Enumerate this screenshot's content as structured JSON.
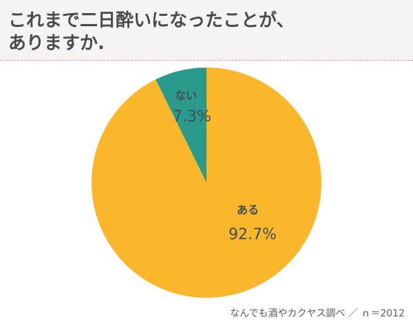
{
  "title": "これまで二日酔いになったことが、\nありますか.",
  "source": "なんでも酒やカクヤス調べ ／ ｎ＝2012",
  "chart_data": {
    "type": "pie",
    "title": "これまで二日酔いになったことが、ありますか.",
    "slices": [
      {
        "label": "ない",
        "value": 7.3,
        "value_label": "7.3%",
        "color": "#2a9a8c"
      },
      {
        "label": "ある",
        "value": 92.7,
        "value_label": "92.7%",
        "color": "#fbb62c"
      }
    ],
    "start": "12 o'clock",
    "direction": "counterclockwise"
  }
}
